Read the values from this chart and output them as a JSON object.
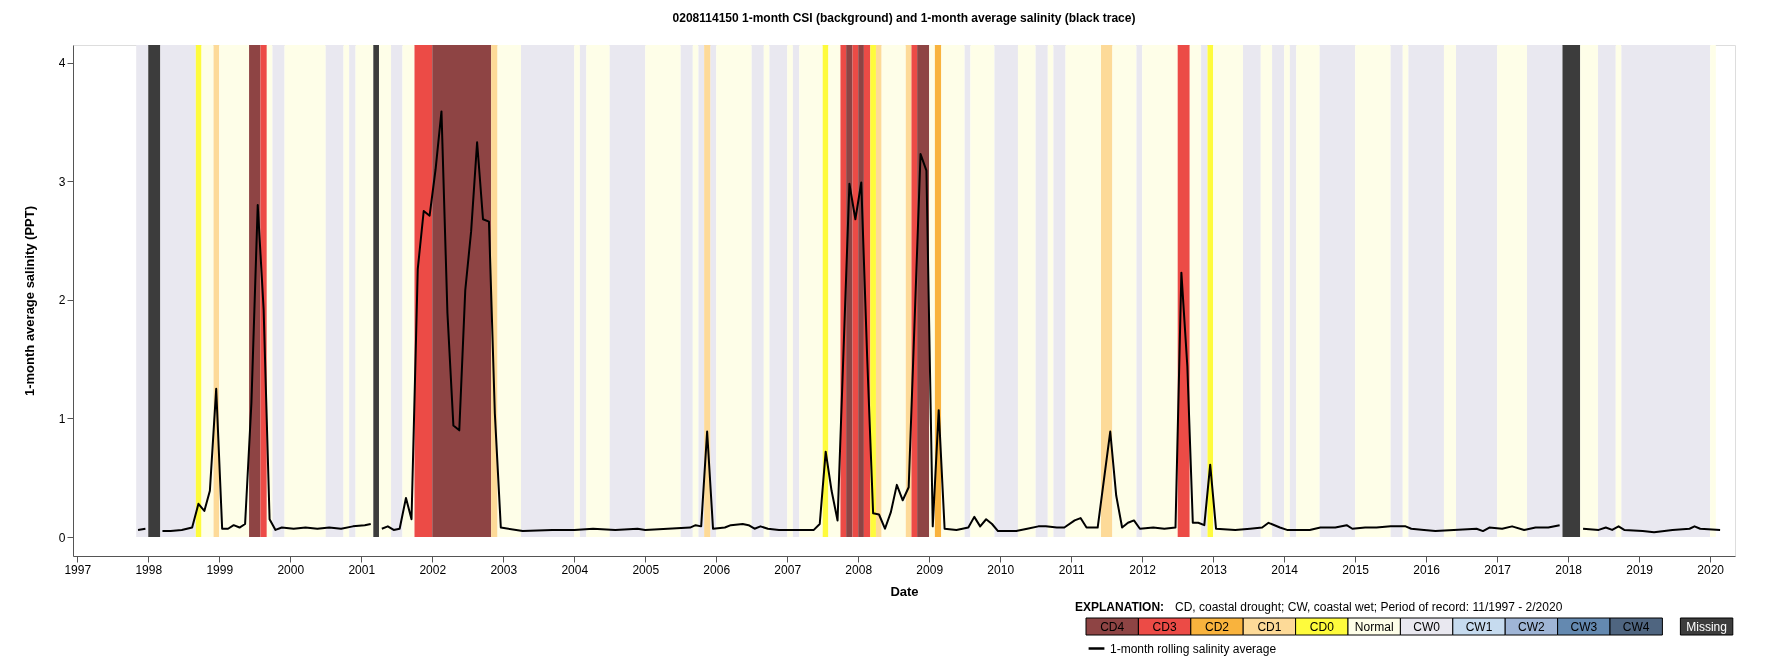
{
  "chart_data": [
    {
      "type": "line",
      "title": "0208114150 1-month CSI (background) and 1-month average salinity (black trace)",
      "xlabel": "Date",
      "ylabel": "1-month average salinity (PPT)",
      "xlim": [
        1996.94,
        2020.35
      ],
      "xticks": [
        1997,
        1998,
        1999,
        2000,
        2001,
        2002,
        2003,
        2004,
        2005,
        2006,
        2007,
        2008,
        2009,
        2010,
        2011,
        2012,
        2013,
        2014,
        2015,
        2016,
        2017,
        2018,
        2019,
        2020
      ],
      "ylim": [
        -0.16,
        4.15
      ],
      "yticks": [
        0,
        1,
        2,
        3,
        4
      ],
      "legend": "bottom right",
      "series": [
        {
          "name": "1-month rolling salinity average",
          "color": "#000000",
          "x": [
            1997.856,
            1997.96,
            1998.08,
            1998.2,
            1998.315,
            1998.472,
            1998.618,
            1998.707,
            1998.79,
            1998.868,
            1998.957,
            1999.041,
            1999.124,
            1999.203,
            1999.286,
            1999.364,
            1999.453,
            1999.542,
            1999.625,
            1999.709,
            1999.792,
            1999.881,
            2000.048,
            2000.215,
            2000.382,
            2000.549,
            2000.716,
            2000.883,
            2001.05,
            2001.134,
            2001.21,
            2001.29,
            2001.374,
            2001.457,
            2001.541,
            2001.63,
            2001.708,
            2001.796,
            2001.88,
            2001.963,
            2002.047,
            2002.13,
            2002.214,
            2002.298,
            2002.381,
            2002.465,
            2002.548,
            2002.632,
            2002.715,
            2002.799,
            2002.882,
            2002.966,
            2003.274,
            2003.691,
            2004.004,
            2004.265,
            2004.578,
            2004.891,
            2005.0,
            2005.318,
            2005.632,
            2005.71,
            2005.788,
            2005.872,
            2005.955,
            2006.122,
            2006.206,
            2006.373,
            2006.456,
            2006.54,
            2006.623,
            2006.728,
            2006.884,
            2007.041,
            2007.25,
            2007.375,
            2007.458,
            2007.542,
            2007.625,
            2007.709,
            2007.876,
            2007.96,
            2008.043,
            2008.126,
            2008.21,
            2008.293,
            2008.377,
            2008.46,
            2008.544,
            2008.627,
            2008.711,
            2008.878,
            2008.961,
            2009.05,
            2009.134,
            2009.217,
            2009.384,
            2009.551,
            2009.635,
            2009.718,
            2009.802,
            2009.885,
            2009.969,
            2010.224,
            2010.381,
            2010.538,
            2010.642,
            2010.798,
            2010.903,
            2011.049,
            2011.132,
            2011.216,
            2011.373,
            2011.55,
            2011.634,
            2011.717,
            2011.8,
            2011.884,
            2011.968,
            2012.156,
            2012.312,
            2012.469,
            2012.552,
            2012.636,
            2012.713,
            2012.79,
            2012.875,
            2012.958,
            2013.04,
            2013.31,
            2013.52,
            2013.69,
            2013.78,
            2013.94,
            2014.04,
            2014.36,
            2014.51,
            2014.72,
            2014.88,
            2014.96,
            2015.14,
            2015.3,
            2015.5,
            2015.71,
            2015.79,
            2015.97,
            2016.13,
            2016.39,
            2016.71,
            2016.8,
            2016.89,
            2017.07,
            2017.21,
            2017.38,
            2017.54,
            2017.72,
            2017.88,
            2018.04,
            2018.21,
            2018.43,
            2018.53,
            2018.62,
            2018.71,
            2018.79,
            2019.05,
            2019.21,
            2019.47,
            2019.71,
            2019.78,
            2019.86,
            2020.14
          ],
          "values": [
            0.06,
            0.07,
            null,
            0.05,
            0.05,
            0.06,
            0.08,
            0.28,
            0.22,
            0.39,
            1.25,
            0.07,
            0.07,
            0.1,
            0.08,
            0.11,
            1.13,
            2.8,
            1.92,
            0.15,
            0.06,
            0.08,
            0.07,
            0.08,
            0.07,
            0.08,
            0.07,
            0.09,
            0.1,
            0.11,
            null,
            0.07,
            0.09,
            0.06,
            0.07,
            0.33,
            0.15,
            2.26,
            2.75,
            2.71,
            3.1,
            3.59,
            1.89,
            0.94,
            0.9,
            2.08,
            2.58,
            3.33,
            2.68,
            2.66,
            1.04,
            0.08,
            0.05,
            0.06,
            0.06,
            0.07,
            0.06,
            0.07,
            0.06,
            0.07,
            0.08,
            0.1,
            0.09,
            0.89,
            0.07,
            0.08,
            0.1,
            0.11,
            0.1,
            0.07,
            0.09,
            0.07,
            0.06,
            0.06,
            0.06,
            0.06,
            0.11,
            0.72,
            0.39,
            0.14,
            2.98,
            2.68,
            2.99,
            1.52,
            0.2,
            0.19,
            0.07,
            0.21,
            0.44,
            0.31,
            0.42,
            3.23,
            3.09,
            0.09,
            1.07,
            0.07,
            0.06,
            0.08,
            0.17,
            0.09,
            0.15,
            0.11,
            0.05,
            0.05,
            0.07,
            0.09,
            0.09,
            0.08,
            0.08,
            0.14,
            0.16,
            0.08,
            0.08,
            0.89,
            0.35,
            0.08,
            0.12,
            0.14,
            0.07,
            0.08,
            0.07,
            0.08,
            2.23,
            1.44,
            0.12,
            0.12,
            0.1,
            0.61,
            0.07,
            0.06,
            0.07,
            0.08,
            0.12,
            0.08,
            0.06,
            0.06,
            0.08,
            0.08,
            0.1,
            0.07,
            0.08,
            0.08,
            0.09,
            0.09,
            0.07,
            0.06,
            0.05,
            0.06,
            0.07,
            0.05,
            0.08,
            0.07,
            0.09,
            0.06,
            0.08,
            0.08,
            0.1,
            null,
            0.07,
            0.06,
            0.08,
            0.06,
            0.09,
            0.06,
            0.05,
            0.04,
            0.06,
            0.07,
            0.09,
            0.07,
            0.06
          ]
        }
      ],
      "bands": [
        {
          "axis": "x",
          "from": 1997.83,
          "to": 1998.0,
          "color": "#e9e8f0"
        },
        {
          "axis": "x",
          "from": 1998.0,
          "to": 1998.17,
          "color": "#3c3c3c"
        },
        {
          "axis": "x",
          "from": 1998.17,
          "to": 1998.67,
          "color": "#e9e8f0"
        },
        {
          "axis": "x",
          "from": 1998.67,
          "to": 1998.75,
          "color": "#fefb3c"
        },
        {
          "axis": "x",
          "from": 1998.75,
          "to": 1998.92,
          "color": "#fefee8"
        },
        {
          "axis": "x",
          "from": 1998.92,
          "to": 1999.0,
          "color": "#fdda98"
        },
        {
          "axis": "x",
          "from": 1999.0,
          "to": 1999.42,
          "color": "#fefee8"
        },
        {
          "axis": "x",
          "from": 1999.42,
          "to": 1999.58,
          "color": "#8e4444"
        },
        {
          "axis": "x",
          "from": 1999.58,
          "to": 1999.67,
          "color": "#ec4b46"
        },
        {
          "axis": "x",
          "from": 1999.67,
          "to": 1999.75,
          "color": "#fefee8"
        },
        {
          "axis": "x",
          "from": 1999.75,
          "to": 1999.92,
          "color": "#e9e8f0"
        },
        {
          "axis": "x",
          "from": 1999.92,
          "to": 2000.5,
          "color": "#fefee8"
        },
        {
          "axis": "x",
          "from": 2000.5,
          "to": 2000.75,
          "color": "#e9e8f0"
        },
        {
          "axis": "x",
          "from": 2000.75,
          "to": 2000.83,
          "color": "#fefee8"
        },
        {
          "axis": "x",
          "from": 2000.83,
          "to": 2000.92,
          "color": "#e9e8f0"
        },
        {
          "axis": "x",
          "from": 2000.92,
          "to": 2001.17,
          "color": "#fefee8"
        },
        {
          "axis": "x",
          "from": 2001.17,
          "to": 2001.25,
          "color": "#3c3c3c"
        },
        {
          "axis": "x",
          "from": 2001.25,
          "to": 2001.42,
          "color": "#fefee8"
        },
        {
          "axis": "x",
          "from": 2001.42,
          "to": 2001.58,
          "color": "#e9e8f0"
        },
        {
          "axis": "x",
          "from": 2001.58,
          "to": 2001.75,
          "color": "#fefee8"
        },
        {
          "axis": "x",
          "from": 2001.75,
          "to": 2002.0,
          "color": "#ec4b46"
        },
        {
          "axis": "x",
          "from": 2002.0,
          "to": 2002.83,
          "color": "#8e4444"
        },
        {
          "axis": "x",
          "from": 2002.83,
          "to": 2002.92,
          "color": "#fdda98"
        },
        {
          "axis": "x",
          "from": 2002.92,
          "to": 2003.25,
          "color": "#fefee8"
        },
        {
          "axis": "x",
          "from": 2003.25,
          "to": 2004.0,
          "color": "#e9e8f0"
        },
        {
          "axis": "x",
          "from": 2004.0,
          "to": 2004.08,
          "color": "#fefee8"
        },
        {
          "axis": "x",
          "from": 2004.08,
          "to": 2004.17,
          "color": "#e9e8f0"
        },
        {
          "axis": "x",
          "from": 2004.17,
          "to": 2004.5,
          "color": "#fefee8"
        },
        {
          "axis": "x",
          "from": 2004.5,
          "to": 2005.0,
          "color": "#e9e8f0"
        },
        {
          "axis": "x",
          "from": 2005.0,
          "to": 2005.5,
          "color": "#fefee8"
        },
        {
          "axis": "x",
          "from": 2005.5,
          "to": 2005.67,
          "color": "#e9e8f0"
        },
        {
          "axis": "x",
          "from": 2005.67,
          "to": 2005.75,
          "color": "#fefee8"
        },
        {
          "axis": "x",
          "from": 2005.75,
          "to": 2005.83,
          "color": "#e9e8f0"
        },
        {
          "axis": "x",
          "from": 2005.83,
          "to": 2005.92,
          "color": "#fdda98"
        },
        {
          "axis": "x",
          "from": 2005.92,
          "to": 2006.0,
          "color": "#e9e8f0"
        },
        {
          "axis": "x",
          "from": 2006.0,
          "to": 2006.5,
          "color": "#fefee8"
        },
        {
          "axis": "x",
          "from": 2006.5,
          "to": 2006.67,
          "color": "#e9e8f0"
        },
        {
          "axis": "x",
          "from": 2006.67,
          "to": 2006.75,
          "color": "#fefee8"
        },
        {
          "axis": "x",
          "from": 2006.75,
          "to": 2007.0,
          "color": "#e9e8f0"
        },
        {
          "axis": "x",
          "from": 2007.0,
          "to": 2007.08,
          "color": "#fefee8"
        },
        {
          "axis": "x",
          "from": 2007.08,
          "to": 2007.17,
          "color": "#e9e8f0"
        },
        {
          "axis": "x",
          "from": 2007.17,
          "to": 2007.5,
          "color": "#fefee8"
        },
        {
          "axis": "x",
          "from": 2007.5,
          "to": 2007.58,
          "color": "#fefb3c"
        },
        {
          "axis": "x",
          "from": 2007.58,
          "to": 2007.75,
          "color": "#fefee8"
        },
        {
          "axis": "x",
          "from": 2007.75,
          "to": 2007.83,
          "color": "#ec4b46"
        },
        {
          "axis": "x",
          "from": 2007.83,
          "to": 2007.92,
          "color": "#8e4444"
        },
        {
          "axis": "x",
          "from": 2007.92,
          "to": 2008.0,
          "color": "#ec4b46"
        },
        {
          "axis": "x",
          "from": 2008.0,
          "to": 2008.08,
          "color": "#8e4444"
        },
        {
          "axis": "x",
          "from": 2008.08,
          "to": 2008.17,
          "color": "#ec4b46"
        },
        {
          "axis": "x",
          "from": 2008.17,
          "to": 2008.25,
          "color": "#fefb3c"
        },
        {
          "axis": "x",
          "from": 2008.25,
          "to": 2008.33,
          "color": "#fdda98"
        },
        {
          "axis": "x",
          "from": 2008.33,
          "to": 2008.67,
          "color": "#fefee8"
        },
        {
          "axis": "x",
          "from": 2008.67,
          "to": 2008.75,
          "color": "#fdda98"
        },
        {
          "axis": "x",
          "from": 2008.75,
          "to": 2008.83,
          "color": "#ec4b46"
        },
        {
          "axis": "x",
          "from": 2008.83,
          "to": 2009.0,
          "color": "#8e4444"
        },
        {
          "axis": "x",
          "from": 2009.0,
          "to": 2009.08,
          "color": "#fefee8"
        },
        {
          "axis": "x",
          "from": 2009.08,
          "to": 2009.17,
          "color": "#f9b33d"
        },
        {
          "axis": "x",
          "from": 2009.17,
          "to": 2009.5,
          "color": "#fefee8"
        },
        {
          "axis": "x",
          "from": 2009.5,
          "to": 2009.58,
          "color": "#e9e8f0"
        },
        {
          "axis": "x",
          "from": 2009.58,
          "to": 2009.92,
          "color": "#fefee8"
        },
        {
          "axis": "x",
          "from": 2009.92,
          "to": 2010.25,
          "color": "#e9e8f0"
        },
        {
          "axis": "x",
          "from": 2010.25,
          "to": 2010.5,
          "color": "#fefee8"
        },
        {
          "axis": "x",
          "from": 2010.5,
          "to": 2010.67,
          "color": "#e9e8f0"
        },
        {
          "axis": "x",
          "from": 2010.67,
          "to": 2010.75,
          "color": "#fefee8"
        },
        {
          "axis": "x",
          "from": 2010.75,
          "to": 2010.92,
          "color": "#e9e8f0"
        },
        {
          "axis": "x",
          "from": 2010.92,
          "to": 2011.42,
          "color": "#fefee8"
        },
        {
          "axis": "x",
          "from": 2011.42,
          "to": 2011.58,
          "color": "#fdda98"
        },
        {
          "axis": "x",
          "from": 2011.58,
          "to": 2011.92,
          "color": "#fefee8"
        },
        {
          "axis": "x",
          "from": 2011.92,
          "to": 2012.0,
          "color": "#e9e8f0"
        },
        {
          "axis": "x",
          "from": 2012.0,
          "to": 2012.5,
          "color": "#fefee8"
        },
        {
          "axis": "x",
          "from": 2012.5,
          "to": 2012.67,
          "color": "#ec4b46"
        },
        {
          "axis": "x",
          "from": 2012.67,
          "to": 2012.83,
          "color": "#fefee8"
        },
        {
          "axis": "x",
          "from": 2012.83,
          "to": 2012.92,
          "color": "#e9e8f0"
        },
        {
          "axis": "x",
          "from": 2012.92,
          "to": 2013.0,
          "color": "#fefb3c"
        },
        {
          "axis": "x",
          "from": 2013.0,
          "to": 2013.42,
          "color": "#fefee8"
        },
        {
          "axis": "x",
          "from": 2013.42,
          "to": 2013.67,
          "color": "#e9e8f0"
        },
        {
          "axis": "x",
          "from": 2013.67,
          "to": 2013.83,
          "color": "#fefee8"
        },
        {
          "axis": "x",
          "from": 2013.83,
          "to": 2014.0,
          "color": "#e9e8f0"
        },
        {
          "axis": "x",
          "from": 2014.0,
          "to": 2014.08,
          "color": "#fefee8"
        },
        {
          "axis": "x",
          "from": 2014.08,
          "to": 2014.17,
          "color": "#e9e8f0"
        },
        {
          "axis": "x",
          "from": 2014.17,
          "to": 2014.5,
          "color": "#fefee8"
        },
        {
          "axis": "x",
          "from": 2014.5,
          "to": 2015.0,
          "color": "#e9e8f0"
        },
        {
          "axis": "x",
          "from": 2015.0,
          "to": 2015.5,
          "color": "#fefee8"
        },
        {
          "axis": "x",
          "from": 2015.5,
          "to": 2015.67,
          "color": "#e9e8f0"
        },
        {
          "axis": "x",
          "from": 2015.67,
          "to": 2015.75,
          "color": "#fefee8"
        },
        {
          "axis": "x",
          "from": 2015.75,
          "to": 2016.25,
          "color": "#e9e8f0"
        },
        {
          "axis": "x",
          "from": 2016.25,
          "to": 2016.42,
          "color": "#fefee8"
        },
        {
          "axis": "x",
          "from": 2016.42,
          "to": 2017.0,
          "color": "#e9e8f0"
        },
        {
          "axis": "x",
          "from": 2017.0,
          "to": 2017.42,
          "color": "#fefee8"
        },
        {
          "axis": "x",
          "from": 2017.42,
          "to": 2017.92,
          "color": "#e9e8f0"
        },
        {
          "axis": "x",
          "from": 2017.92,
          "to": 2018.17,
          "color": "#3c3c3c"
        },
        {
          "axis": "x",
          "from": 2018.17,
          "to": 2018.42,
          "color": "#fefee8"
        },
        {
          "axis": "x",
          "from": 2018.42,
          "to": 2018.67,
          "color": "#e9e8f0"
        },
        {
          "axis": "x",
          "from": 2018.67,
          "to": 2018.75,
          "color": "#fefee8"
        },
        {
          "axis": "x",
          "from": 2018.75,
          "to": 2020.0,
          "color": "#e9e8f0"
        },
        {
          "axis": "x",
          "from": 2020.0,
          "to": 2020.08,
          "color": "#fefee8"
        }
      ]
    },
    {
      "type": "other",
      "title": "EXPLANATION:",
      "annotations": [
        "CD, coastal drought; CW, coastal wet; Period of record: 11/1997 - 2/2020"
      ],
      "categories": [
        "CD4",
        "CD3",
        "CD2",
        "CD1",
        "CD0",
        "Normal",
        "CW0",
        "CW1",
        "CW2",
        "CW3",
        "CW4",
        "Missing"
      ],
      "colors": [
        "#8e4444",
        "#ec4b46",
        "#f9b33d",
        "#fdda98",
        "#fefb3c",
        "#fefee8",
        "#e9e8f0",
        "#c6dbef",
        "#9fb5d6",
        "#6489b0",
        "#4f6580",
        "#3c3c3c"
      ]
    }
  ]
}
